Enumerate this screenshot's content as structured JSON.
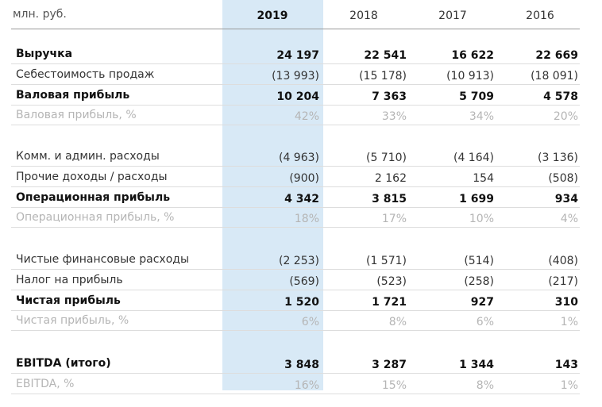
{
  "header": {
    "unit": "млн. руб.",
    "years": [
      "2019",
      "2018",
      "2017",
      "2016"
    ]
  },
  "table": {
    "groups": [
      {
        "rows": [
          {
            "label": "Выручка",
            "style": "bold",
            "values": [
              "24 197",
              "22 541",
              "16 622",
              "22 669"
            ]
          },
          {
            "label": "Себестоимость продаж",
            "style": "normal",
            "values": [
              "(13 993)",
              "(15 178)",
              "(10 913)",
              "(18 091)"
            ]
          },
          {
            "label": "Валовая прибыль",
            "style": "bold",
            "values": [
              "10 204",
              "7 363",
              "5 709",
              "4 578"
            ]
          },
          {
            "label": "Валовая прибыль, %",
            "style": "muted",
            "values": [
              "42%",
              "33%",
              "34%",
              "20%"
            ]
          }
        ]
      },
      {
        "rows": [
          {
            "label": "Комм. и админ. расходы",
            "style": "normal",
            "values": [
              "(4 963)",
              "(5 710)",
              "(4 164)",
              "(3 136)"
            ]
          },
          {
            "label": "Прочие доходы / расходы",
            "style": "normal",
            "values": [
              "(900)",
              "2 162",
              "154",
              "(508)"
            ]
          },
          {
            "label": "Операционная прибыль",
            "style": "bold",
            "values": [
              "4 342",
              "3 815",
              "1 699",
              "934"
            ]
          },
          {
            "label": "Операционная прибыль, %",
            "style": "muted",
            "values": [
              "18%",
              "17%",
              "10%",
              "4%"
            ]
          }
        ]
      },
      {
        "rows": [
          {
            "label": "Чистые финансовые расходы",
            "style": "normal",
            "values": [
              "(2 253)",
              "(1 571)",
              "(514)",
              "(408)"
            ]
          },
          {
            "label": "Налог на прибыль",
            "style": "normal",
            "values": [
              "(569)",
              "(523)",
              "(258)",
              "(217)"
            ]
          },
          {
            "label": "Чистая прибыль",
            "style": "bold",
            "values": [
              "1 520",
              "1 721",
              "927",
              "310"
            ]
          },
          {
            "label": "Чистая прибыль, %",
            "style": "muted",
            "values": [
              "6%",
              "8%",
              "6%",
              "1%"
            ]
          }
        ]
      },
      {
        "rows": [
          {
            "label": "EBITDA (итого)",
            "style": "bold",
            "values": [
              "3 848",
              "3 287",
              "1 344",
              "143"
            ]
          },
          {
            "label": "EBITDA, %",
            "style": "muted",
            "values": [
              "16%",
              "15%",
              "8%",
              "1%"
            ]
          }
        ]
      }
    ]
  }
}
